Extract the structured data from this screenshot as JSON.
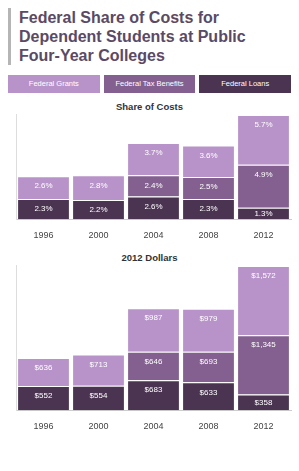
{
  "chart_data": [
    {
      "type": "bar",
      "title": "Federal Share of Costs for Dependent Students at Public Four-Year Colleges",
      "subtitle": "Share of Costs",
      "legend": "top",
      "stacked": true,
      "data_labels": true,
      "tick_labels": "x",
      "grid": false,
      "categories": [
        "1996",
        "2000",
        "2004",
        "2008",
        "2012"
      ],
      "ylim": [
        0,
        12
      ],
      "yticks": [],
      "series": [
        {
          "name": "Federal Grants",
          "color": "#b893c9",
          "values": [
            2.6,
            2.8,
            3.7,
            3.6,
            5.7
          ],
          "value_labels": [
            "2.6%",
            "2.8%",
            "3.7%",
            "3.6%",
            "5.7%"
          ]
        },
        {
          "name": "Federal Tax Benefits",
          "color": "#83608f",
          "values": [
            null,
            null,
            2.4,
            2.5,
            4.9
          ],
          "value_labels": [
            null,
            null,
            "2.4%",
            "2.5%",
            "4.9%"
          ]
        },
        {
          "name": "Federal Loans",
          "color": "#4b3352",
          "values": [
            2.3,
            2.2,
            2.6,
            2.3,
            1.3
          ],
          "value_labels": [
            "2.3%",
            "2.2%",
            "2.6%",
            "2.3%",
            "1.3%"
          ]
        }
      ]
    },
    {
      "type": "bar",
      "subtitle": "2012 Dollars",
      "stacked": true,
      "data_labels": true,
      "tick_labels": "x",
      "grid": false,
      "categories": [
        "1996",
        "2000",
        "2004",
        "2008",
        "2012"
      ],
      "ylim": [
        0,
        3300
      ],
      "yticks": [],
      "series": [
        {
          "name": "Federal Grants",
          "color": "#b893c9",
          "values": [
            636,
            713,
            987,
            979,
            1572
          ],
          "value_labels": [
            "$636",
            "$713",
            "$987",
            "$979",
            "$1,572"
          ]
        },
        {
          "name": "Federal Tax Benefits",
          "color": "#83608f",
          "values": [
            null,
            null,
            646,
            693,
            1345
          ],
          "value_labels": [
            null,
            null,
            "$646",
            "$693",
            "$1,345"
          ]
        },
        {
          "name": "Federal Loans",
          "color": "#4b3352",
          "values": [
            552,
            554,
            683,
            633,
            358
          ],
          "value_labels": [
            "$552",
            "$554",
            "$683",
            "$633",
            "$358"
          ]
        }
      ]
    }
  ]
}
